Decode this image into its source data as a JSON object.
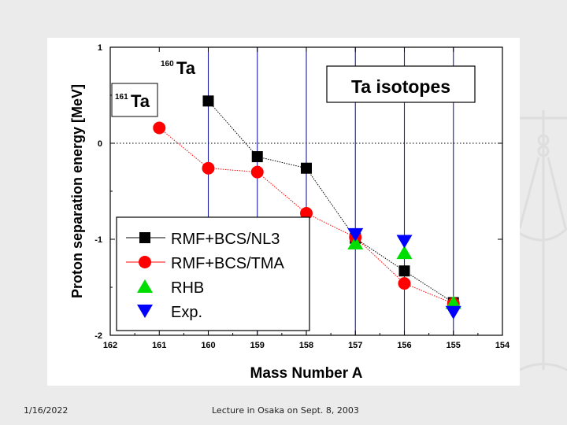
{
  "slide": {
    "footer_date": "1/16/2022",
    "footer_caption": "Lecture in Osaka on Sept. 8, 2003"
  },
  "chart_data": {
    "type": "scatter",
    "title": "Ta isotopes",
    "xlabel": "Mass Number A",
    "ylabel": "Proton separation energy [MeV]",
    "xlim": [
      162,
      154
    ],
    "ylim": [
      -2,
      1
    ],
    "x_ticks": [
      "162",
      "161",
      "160",
      "159",
      "158",
      "157",
      "156",
      "155",
      "154"
    ],
    "y_ticks": [
      "1",
      "0",
      "-1",
      "-2"
    ],
    "x_reversed": true,
    "vertical_lines_at": [
      160,
      159,
      158,
      157,
      156,
      155
    ],
    "zero_line": "dotted",
    "annotations": [
      {
        "mass": "160",
        "element": "Ta"
      },
      {
        "mass": "161",
        "element": "Ta"
      }
    ],
    "legend_position": "bottom-left",
    "series": [
      {
        "name": "RMF+BCS/NL3",
        "marker": "square",
        "color": "#000000",
        "line": "dotted",
        "points": [
          [
            160,
            0.44
          ],
          [
            159,
            -0.14
          ],
          [
            158,
            -0.26
          ],
          [
            157,
            -0.99
          ],
          [
            156,
            -1.33
          ],
          [
            155,
            -1.66
          ]
        ]
      },
      {
        "name": "RMF+BCS/TMA",
        "marker": "circle",
        "color": "#ff0000",
        "line": "dotted",
        "points": [
          [
            161,
            0.16
          ],
          [
            160,
            -0.26
          ],
          [
            159,
            -0.3
          ],
          [
            158,
            -0.73
          ],
          [
            157,
            -0.98
          ],
          [
            156,
            -1.46
          ],
          [
            155,
            -1.67
          ]
        ]
      },
      {
        "name": "RHB",
        "marker": "triangle-up",
        "color": "#00dd00",
        "line": "none",
        "points": [
          [
            157,
            -1.04
          ],
          [
            156,
            -1.14
          ],
          [
            155,
            -1.66
          ]
        ]
      },
      {
        "name": "Exp.",
        "marker": "triangle-down",
        "color": "#0000ff",
        "line": "none",
        "points": [
          [
            157,
            -0.95
          ],
          [
            156,
            -1.02
          ],
          [
            155,
            -1.76
          ]
        ]
      }
    ]
  }
}
